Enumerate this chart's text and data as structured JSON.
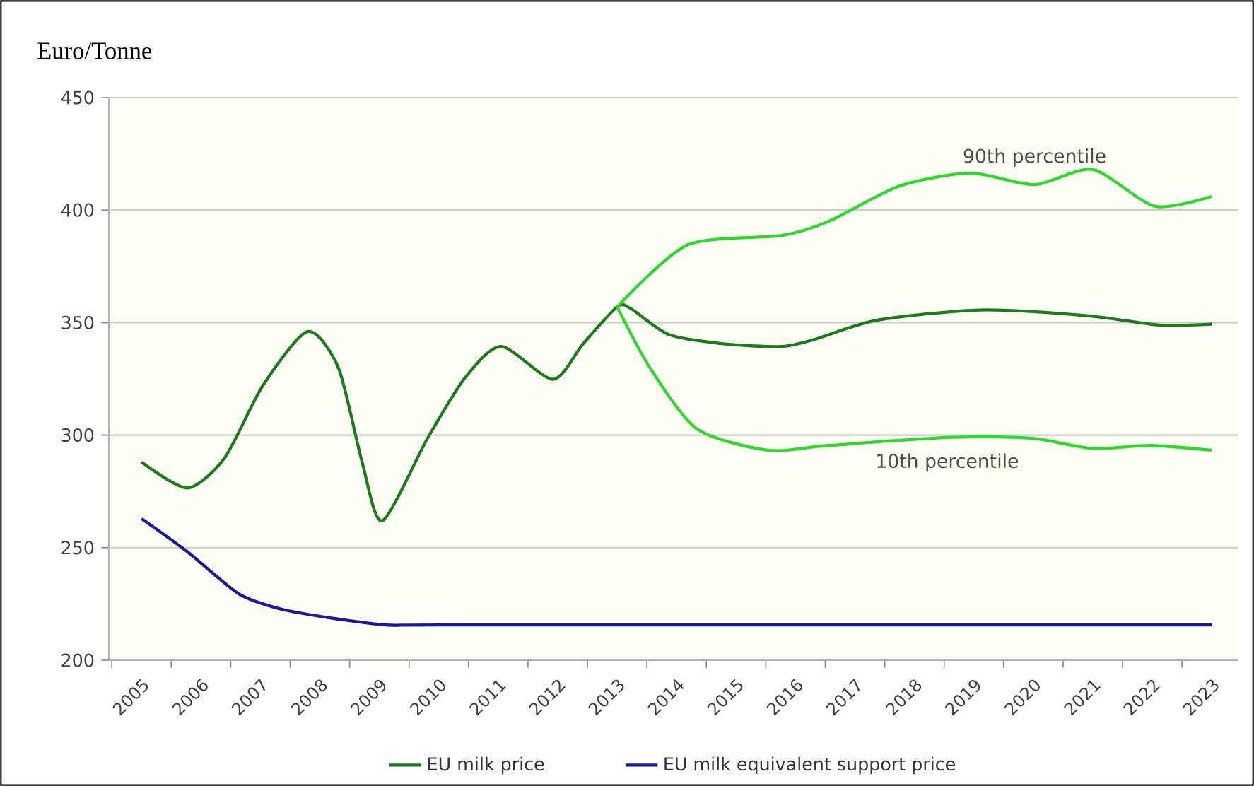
{
  "chart_data": {
    "type": "line",
    "ylabel": "Euro/Tonne",
    "xlim": [
      2004.45,
      2023.45
    ],
    "xticks": [
      2005,
      2006,
      2007,
      2008,
      2009,
      2010,
      2011,
      2012,
      2013,
      2014,
      2015,
      2016,
      2017,
      2018,
      2019,
      2020,
      2021,
      2022,
      2023
    ],
    "ylim": [
      200,
      450
    ],
    "yticks": [
      200,
      250,
      300,
      350,
      400,
      450
    ],
    "grid": "y",
    "legend": "bottom",
    "series": [
      {
        "name": "EU milk price",
        "color": "#1e7a1e",
        "x": [
          2005,
          2005.77,
          2006.4,
          2007.04,
          2007.79,
          2008.31,
          2008.71,
          2009.05,
          2009.81,
          2010.45,
          2011.05,
          2011.92,
          2012.43,
          2013,
          2013.23,
          2013.87,
          2014.82,
          2015.77,
          2016.33,
          2017.36,
          2019.1,
          2020.93,
          2022.12,
          2023
        ],
        "values": [
          288,
          276.5,
          290,
          322,
          346,
          330,
          288,
          262,
          298.6,
          325.8,
          339.4,
          324.8,
          340.7,
          357,
          356.2,
          344.7,
          340.5,
          339.4,
          342.6,
          351,
          355.6,
          353,
          348.9,
          349.3
        ]
      },
      {
        "color": "#2ed82e",
        "x": [
          2013,
          2014.18,
          2015.77,
          2016.56,
          2017.75,
          2018.94,
          2020.02,
          2021,
          2022.04,
          2023
        ],
        "values": [
          357,
          384.5,
          388.7,
          395,
          410.7,
          416.4,
          411.3,
          418,
          401.7,
          406
        ]
      },
      {
        "color": "#2ed82e",
        "x": [
          2013,
          2013.55,
          2014.34,
          2015.53,
          2016.56,
          2018.55,
          2019.98,
          2021,
          2021.96,
          2023
        ],
        "values": [
          357,
          330,
          302.8,
          293.3,
          295.4,
          299,
          298.6,
          294,
          295.4,
          293.3
        ]
      },
      {
        "name": "EU milk equivalent support price",
        "color": "#1a1a9c",
        "x": [
          2005,
          2005.77,
          2006.64,
          2007.36,
          2008.15,
          2009.1,
          2010,
          2015,
          2020,
          2023
        ],
        "values": [
          262.9,
          248.2,
          229.4,
          222.6,
          218.9,
          215.7,
          215.7,
          215.7,
          215.7,
          215.7
        ]
      }
    ],
    "annotations": [
      "90th percentile",
      "10th percentile"
    ]
  }
}
